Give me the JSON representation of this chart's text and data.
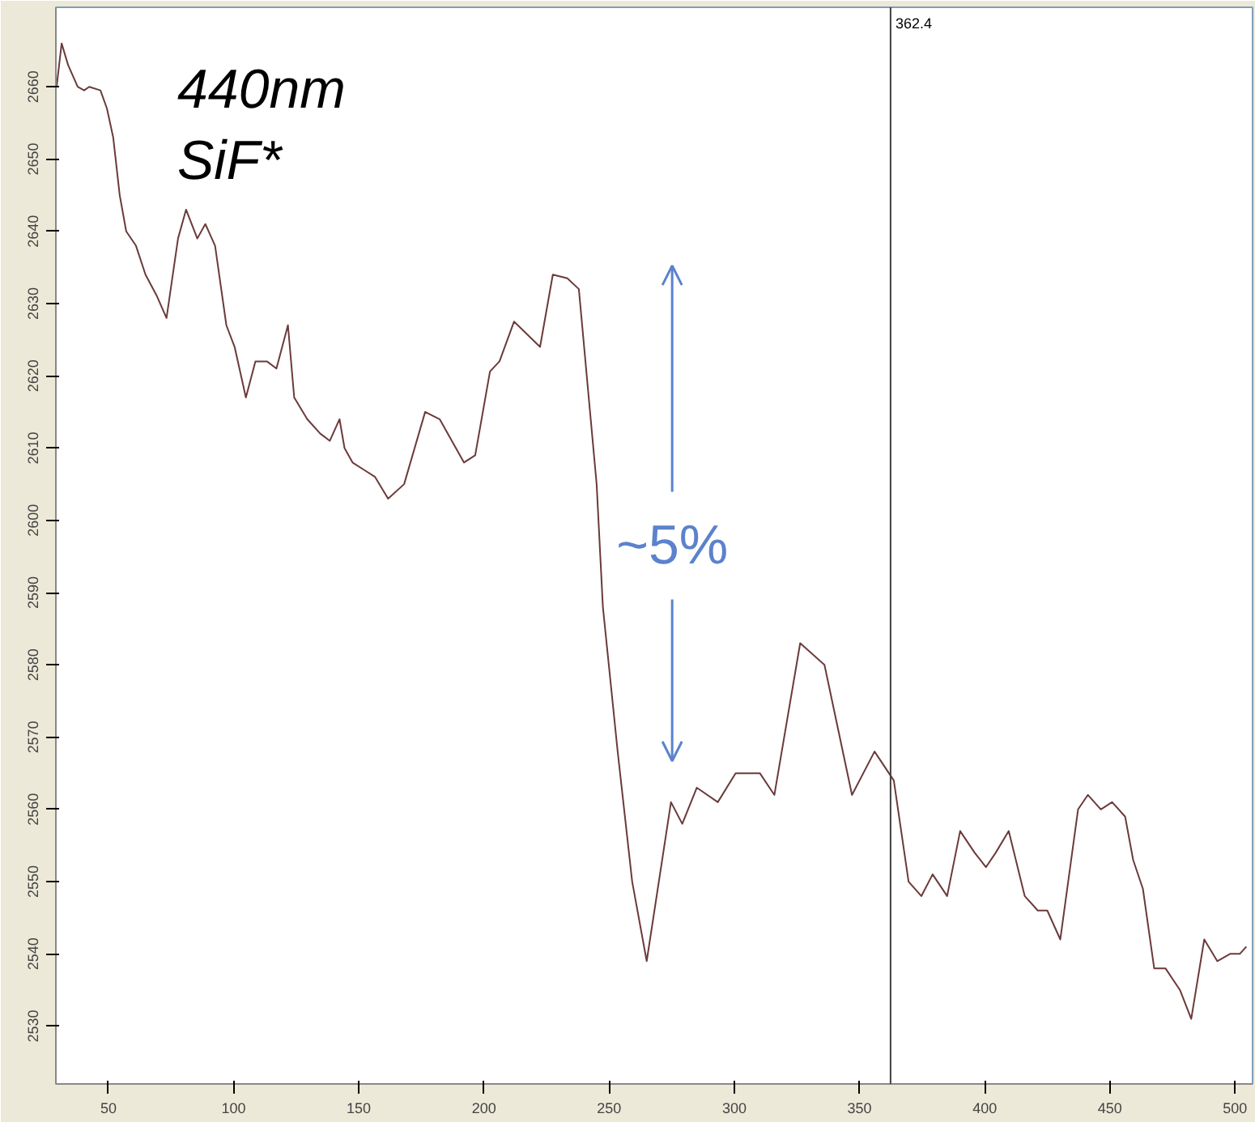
{
  "chart_data": {
    "type": "line",
    "xlim": [
      29,
      507
    ],
    "ylim": [
      2522,
      2671
    ],
    "xticks": [
      50,
      100,
      150,
      200,
      250,
      300,
      350,
      400,
      450,
      500
    ],
    "yticks": [
      2530,
      2540,
      2550,
      2560,
      2570,
      2580,
      2590,
      2600,
      2610,
      2620,
      2630,
      2640,
      2650,
      2660
    ],
    "grid": false,
    "marker": "none",
    "line_style": "solid",
    "series": [
      {
        "color": "#6b3a3a",
        "x": [
          29.3,
          31.3,
          33.9,
          37.7,
          40.3,
          42.3,
          46.8,
          49.4,
          51.9,
          54.5,
          57.1,
          61,
          64.8,
          69.4,
          73.2,
          77.8,
          81,
          85.5,
          88.7,
          92.6,
          97.1,
          100.4,
          104.9,
          108.7,
          113.3,
          117.1,
          121.7,
          124.2,
          129.4,
          134.6,
          138.4,
          142.3,
          144.3,
          147.5,
          152,
          156.5,
          161.7,
          168.1,
          176.5,
          182.3,
          192,
          196.5,
          202.4,
          206.2,
          212,
          222.4,
          227.5,
          233.3,
          237.9,
          245,
          247.5,
          253.4,
          259.2,
          265,
          274.7,
          279.2,
          285,
          293.4,
          300.5,
          310.2,
          316,
          326.3,
          336,
          347,
          356,
          363.7,
          369.6,
          374.7,
          379.2,
          385,
          390.2,
          396,
          400.5,
          404.4,
          409.6,
          416,
          421.2,
          425,
          430.2,
          437.3,
          441.2,
          446.4,
          450.9,
          456.1,
          459.3,
          463.2,
          467.7,
          472.2,
          478,
          482.5,
          487.7,
          492.9,
          498,
          501.9,
          504.5
        ],
        "values": [
          2660,
          2666,
          2663,
          2660,
          2659.5,
          2660,
          2659.5,
          2657,
          2653,
          2645,
          2640,
          2638,
          2634,
          2631,
          2628,
          2639,
          2643,
          2639,
          2641,
          2638,
          2627,
          2624,
          2617,
          2622,
          2622,
          2621,
          2627,
          2617,
          2614,
          2612,
          2611,
          2614,
          2610,
          2608,
          2607,
          2606,
          2603,
          2605,
          2615,
          2614,
          2608,
          2609,
          2620.6,
          2622,
          2627.5,
          2624,
          2634,
          2633.5,
          2632,
          2605,
          2588,
          2568,
          2550,
          2539,
          2561,
          2558,
          2563,
          2561,
          2565,
          2565,
          2562,
          2583,
          2580,
          2562,
          2568,
          2564,
          2550,
          2548,
          2551,
          2548,
          2557,
          2554,
          2552,
          2554,
          2557,
          2548,
          2546,
          2546,
          2542,
          2560,
          2562,
          2560,
          2561,
          2559,
          2553,
          2549,
          2538,
          2538,
          2535,
          2531,
          2542,
          2539,
          2540,
          2540,
          2541
        ]
      }
    ],
    "ref_lines": [
      {
        "axis": "x",
        "value": 362.4,
        "label": "362.4",
        "color": "#404040"
      }
    ],
    "annotations": [
      "440nm",
      "SiF*",
      "~5%"
    ]
  }
}
